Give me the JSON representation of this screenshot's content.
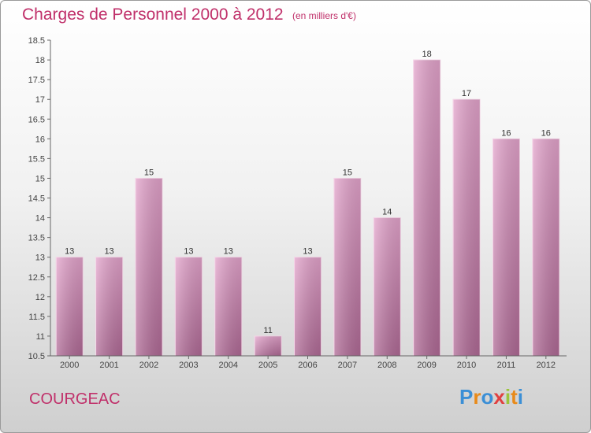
{
  "chart_data": {
    "type": "bar",
    "title": "Charges de Personnel 2000 à 2012",
    "subtitle": "(en milliers d'€)",
    "categories": [
      "2000",
      "2001",
      "2002",
      "2003",
      "2004",
      "2005",
      "2006",
      "2007",
      "2008",
      "2009",
      "2010",
      "2011",
      "2012"
    ],
    "values": [
      13,
      13,
      15,
      13,
      13,
      11,
      13,
      15,
      14,
      18,
      17,
      16,
      16
    ],
    "ylim": [
      10.5,
      18.5
    ],
    "yticks": [
      "10.5",
      "11",
      "11.5",
      "12",
      "12.5",
      "13",
      "13.5",
      "14",
      "14.5",
      "15",
      "15.5",
      "16",
      "16.5",
      "17",
      "17.5",
      "18",
      "18.5"
    ],
    "grid": false,
    "bar_color": "#c97aa8",
    "label_color": "#c0306a"
  },
  "commune": "COURGEAC",
  "brand": {
    "letters": [
      "P",
      "r",
      "o",
      "x",
      "i",
      "t",
      "i"
    ],
    "colors": [
      "#3b8fd6",
      "#e88a1a",
      "#3b8fd6",
      "#e04040",
      "#9bc43a",
      "#e88a1a",
      "#3b8fd6"
    ]
  }
}
